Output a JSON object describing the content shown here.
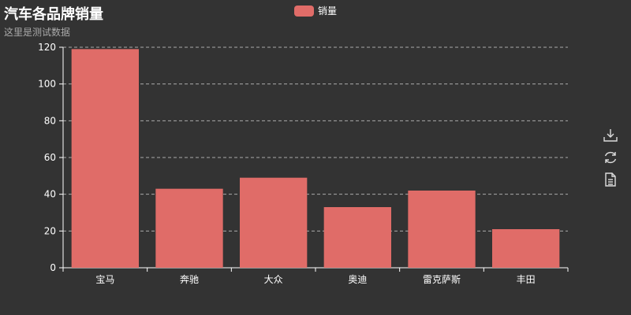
{
  "chart_data": {
    "type": "bar",
    "title": "汽车各品牌销量",
    "subtitle": "这里是测试数据",
    "categories": [
      "宝马",
      "奔驰",
      "大众",
      "奥迪",
      "雷克萨斯",
      "丰田"
    ],
    "series": [
      {
        "name": "销量",
        "values": [
          119,
          43,
          49,
          33,
          42,
          21
        ],
        "color": "#e06c68"
      }
    ],
    "ylim": [
      0,
      120
    ],
    "yticks": [
      0,
      20,
      40,
      60,
      80,
      100,
      120
    ],
    "grid": true,
    "legend_position": "top-center"
  },
  "toolbox": {
    "icons": [
      "download-icon",
      "refresh-icon",
      "data-view-icon"
    ]
  },
  "colors": {
    "background": "#333333",
    "bar": "#e06c68",
    "axis": "#ffffff",
    "grid": "#aaaaaa"
  }
}
